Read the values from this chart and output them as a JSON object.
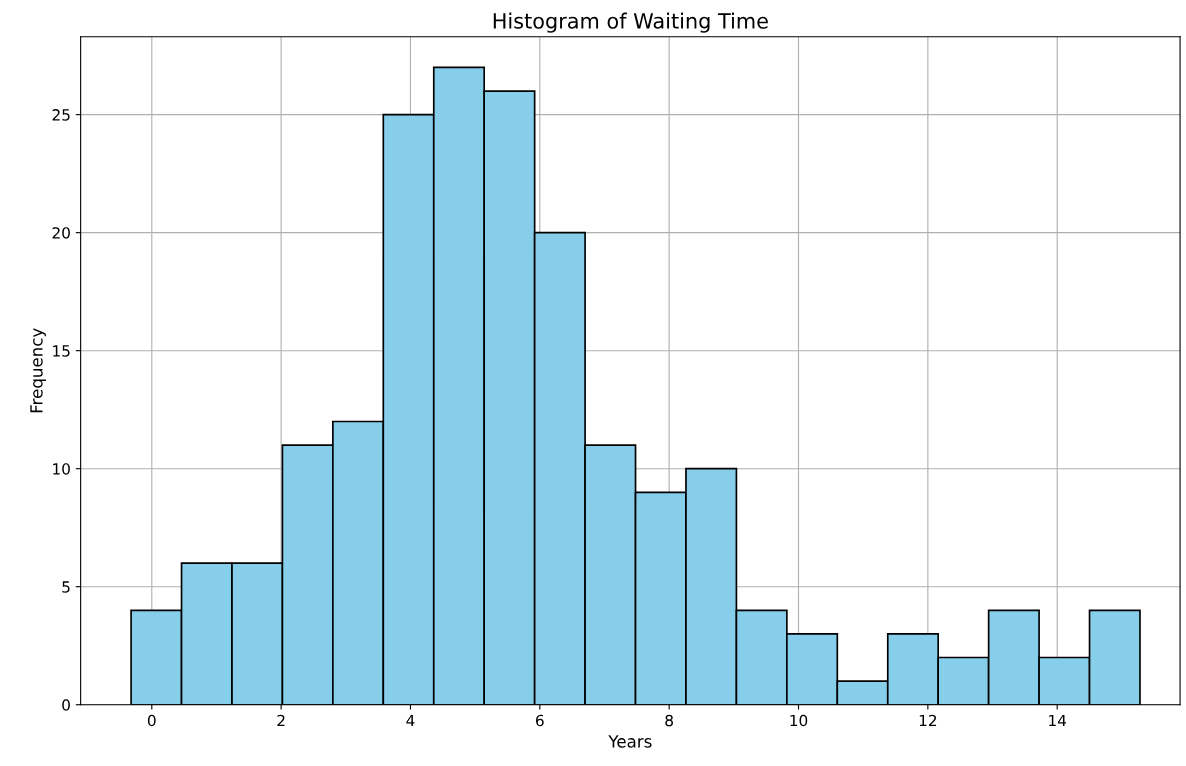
{
  "chart_data": {
    "type": "histogram",
    "title": "Histogram of Waiting Time",
    "xlabel": "Years",
    "ylabel": "Frequency",
    "bins": [
      -0.32,
      0.46,
      1.24,
      2.02,
      2.8,
      3.58,
      4.36,
      5.14,
      5.92,
      6.7,
      7.48,
      8.26,
      9.04,
      9.82,
      10.6,
      11.38,
      12.16,
      12.94,
      13.72,
      14.5,
      15.28
    ],
    "values": [
      4,
      6,
      6,
      11,
      12,
      25,
      27,
      26,
      20,
      11,
      9,
      10,
      4,
      3,
      1,
      3,
      2,
      4,
      2,
      4
    ],
    "color": "#87ceeb",
    "xlim": [
      -1.1,
      15.9
    ],
    "xticks": [
      0,
      2,
      4,
      6,
      8,
      10,
      12,
      14
    ],
    "ylim": [
      0,
      28.3
    ],
    "yticks": [
      0,
      5,
      10,
      15,
      20,
      25
    ],
    "grid": true
  }
}
